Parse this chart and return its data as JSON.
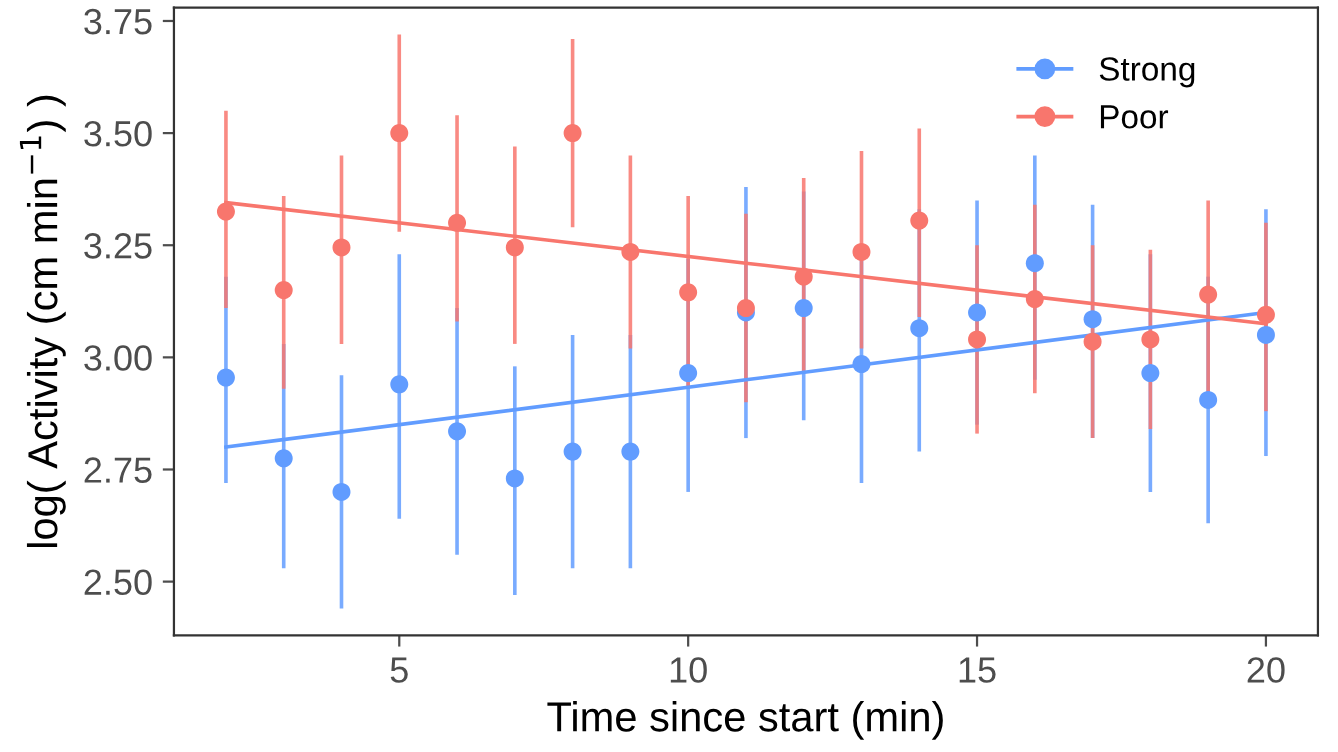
{
  "chart_data": {
    "type": "scatter",
    "xlabel": "Time since start (min)",
    "ylabel": "log( Activity (cm min$^{−1}$) )",
    "x": [
      2,
      3,
      4,
      5,
      6,
      7,
      8,
      9,
      10,
      11,
      12,
      13,
      14,
      15,
      16,
      17,
      18,
      19,
      20
    ],
    "series": [
      {
        "name": "Strong",
        "color": "#619cff",
        "values": [
          2.955,
          2.775,
          2.7,
          2.94,
          2.835,
          2.73,
          2.79,
          2.79,
          2.965,
          3.1,
          3.11,
          2.985,
          3.065,
          3.1,
          3.21,
          3.085,
          2.965,
          2.905,
          3.05
        ],
        "errors": [
          [
            2.72,
            3.18
          ],
          [
            2.53,
            3.03
          ],
          [
            2.44,
            2.96
          ],
          [
            2.64,
            3.23
          ],
          [
            2.56,
            3.11
          ],
          [
            2.47,
            2.98
          ],
          [
            2.53,
            3.05
          ],
          [
            2.53,
            3.05
          ],
          [
            2.7,
            3.22
          ],
          [
            2.82,
            3.38
          ],
          [
            2.86,
            3.37
          ],
          [
            2.72,
            3.25
          ],
          [
            2.79,
            3.33
          ],
          [
            2.85,
            3.35
          ],
          [
            2.95,
            3.45
          ],
          [
            2.82,
            3.34
          ],
          [
            2.7,
            3.23
          ],
          [
            2.63,
            3.18
          ],
          [
            2.78,
            3.33
          ]
        ]
      },
      {
        "name": "Poor",
        "color": "#f8766d",
        "values": [
          3.325,
          3.15,
          3.245,
          3.5,
          3.3,
          3.245,
          3.5,
          3.235,
          3.145,
          3.11,
          3.18,
          3.235,
          3.305,
          3.04,
          3.13,
          3.035,
          3.04,
          3.14,
          3.095
        ],
        "errors": [
          [
            3.11,
            3.55
          ],
          [
            2.93,
            3.36
          ],
          [
            3.03,
            3.45
          ],
          [
            3.28,
            3.72
          ],
          [
            3.08,
            3.54
          ],
          [
            3.03,
            3.47
          ],
          [
            3.29,
            3.71
          ],
          [
            3.02,
            3.45
          ],
          [
            2.93,
            3.36
          ],
          [
            2.9,
            3.32
          ],
          [
            2.97,
            3.4
          ],
          [
            3.02,
            3.46
          ],
          [
            3.09,
            3.51
          ],
          [
            2.83,
            3.25
          ],
          [
            2.92,
            3.34
          ],
          [
            2.82,
            3.25
          ],
          [
            2.84,
            3.24
          ],
          [
            2.92,
            3.35
          ],
          [
            2.88,
            3.3
          ]
        ]
      },
      {
        "type": "line",
        "marker": "none",
        "color": "#619cff",
        "x": [
          2,
          11,
          20
        ],
        "values": [
          2.8,
          2.95,
          3.1
        ]
      },
      {
        "type": "line",
        "marker": "none",
        "color": "#f8766d",
        "x": [
          2,
          11,
          20
        ],
        "values": [
          3.345,
          3.21,
          3.075
        ]
      }
    ],
    "xlim": [
      1.1,
      20.9
    ],
    "ylim": [
      2.38,
      3.78
    ],
    "xticks": [
      5,
      10,
      15,
      20
    ],
    "yticks": [
      {
        "value": 2.5,
        "label": "2.50"
      },
      {
        "value": 2.75,
        "label": "2.75"
      },
      {
        "value": 3.0,
        "label": "3.00"
      },
      {
        "value": 3.25,
        "label": "3.25"
      },
      {
        "value": 3.5,
        "label": "3.50"
      },
      {
        "value": 3.75,
        "label": "3.75"
      }
    ],
    "marker": "circle",
    "legend": "top right",
    "grid": false
  }
}
